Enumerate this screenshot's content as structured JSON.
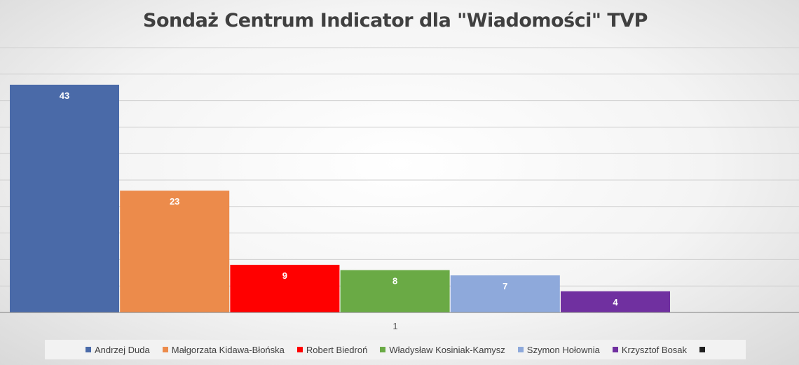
{
  "chart_data": {
    "type": "bar",
    "title": "Sondaż Centrum Indicator dla \"Wiadomości\" TVP",
    "categories": [
      "1"
    ],
    "series": [
      {
        "name": "Andrzej Duda",
        "values": [
          43
        ],
        "color": "#4a6aa8"
      },
      {
        "name": "Małgorzata Kidawa-Błońska",
        "values": [
          23
        ],
        "color": "#ec8b4b"
      },
      {
        "name": "Robert Biedroń",
        "values": [
          9
        ],
        "color": "#ff0000"
      },
      {
        "name": "Władysław Kosiniak-Kamysz",
        "values": [
          8
        ],
        "color": "#6aaa45"
      },
      {
        "name": "Szymon Hołownia",
        "values": [
          7
        ],
        "color": "#8ea9db"
      },
      {
        "name": "Krzysztof Bosak",
        "values": [
          4
        ],
        "color": "#7030a0"
      },
      {
        "name": "",
        "values": [
          null
        ],
        "color": "#1f1f1f"
      }
    ],
    "ylim": [
      0,
      50
    ],
    "grid": true,
    "legend": "bottom",
    "data_labels": true
  }
}
